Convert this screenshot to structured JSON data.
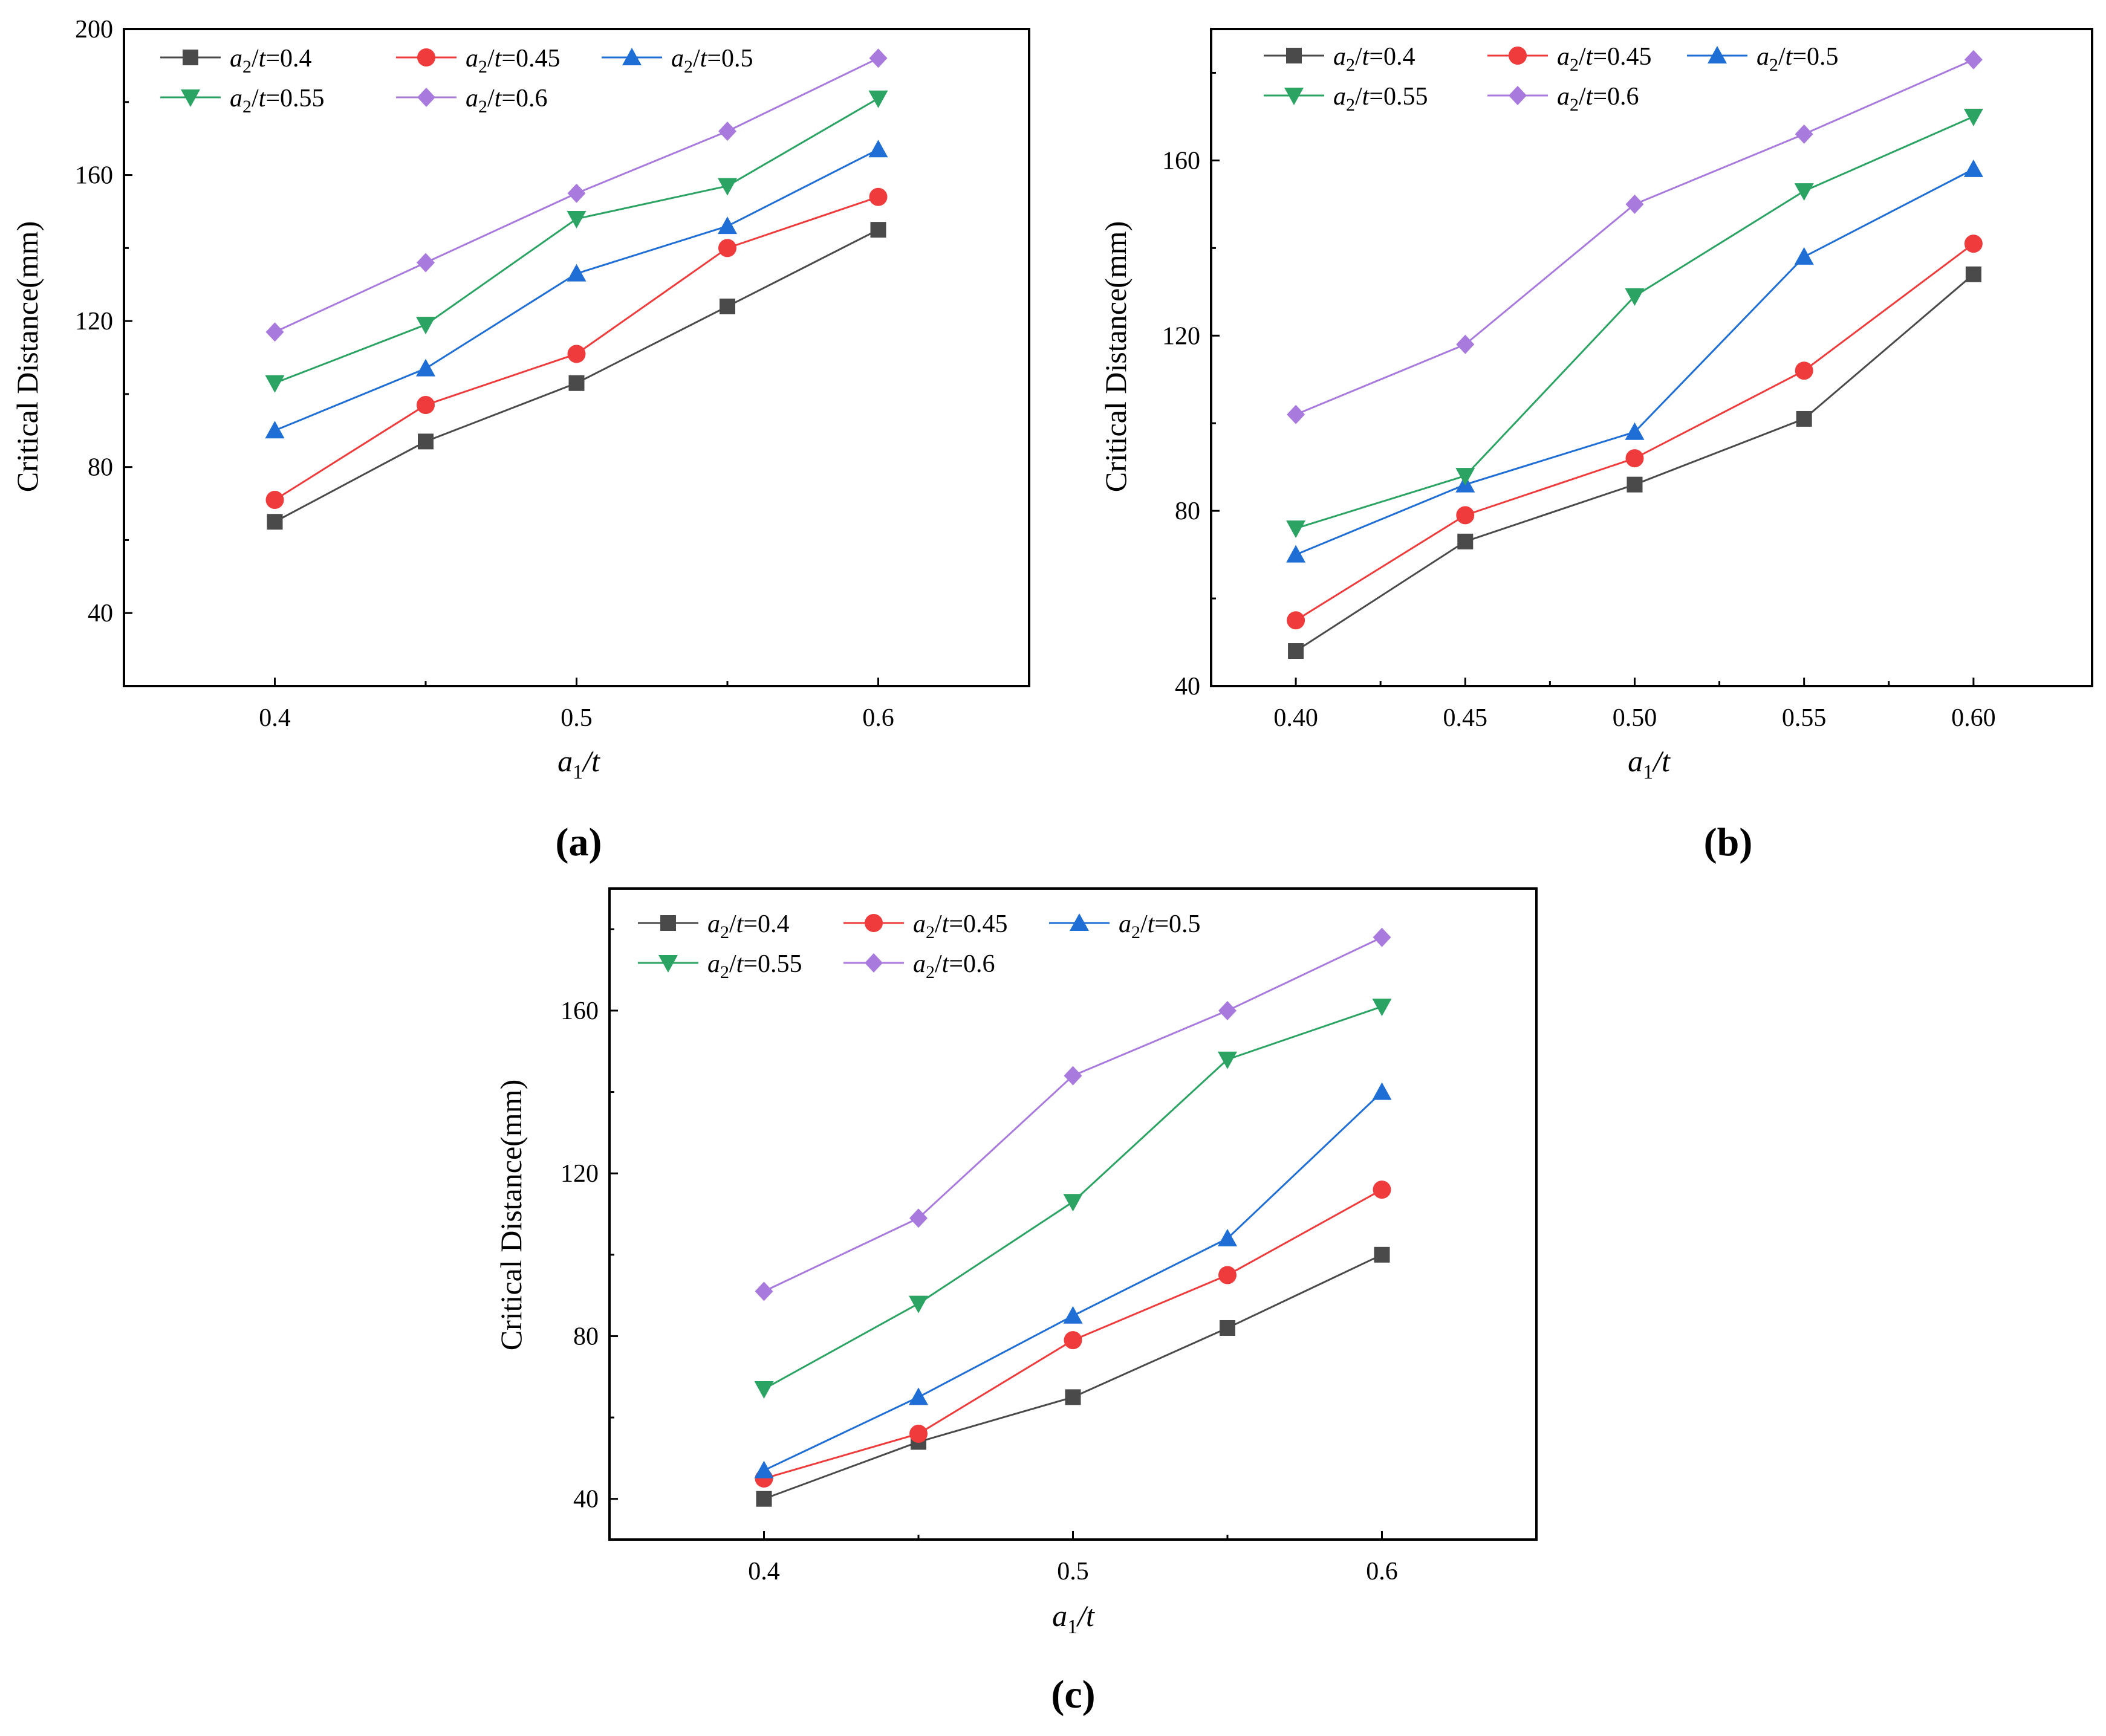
{
  "figure": {
    "panel_labels": [
      "(a)",
      "(b)",
      "(c)"
    ],
    "legend_labels": [
      "a2/t=0.4",
      "a2/t=0.45",
      "a2/t=0.5",
      "a2/t=0.55",
      "a2/t=0.6"
    ],
    "series_colors": [
      "#4a4a4a",
      "#ef3b3b",
      "#1e6ed6",
      "#2aa363",
      "#a87ade"
    ],
    "series_markers": [
      "square",
      "circle",
      "triangle-up",
      "triangle-down",
      "diamond"
    ]
  },
  "chart_data": [
    {
      "type": "line",
      "panel": "(a)",
      "xlabel": "a1/t",
      "ylabel": "Critical Distance(mm)",
      "x": [
        0.4,
        0.45,
        0.5,
        0.55,
        0.6
      ],
      "xticks": [
        "0.4",
        "0.5",
        "0.6"
      ],
      "xtick_values": [
        0.4,
        0.5,
        0.6
      ],
      "xlim": [
        0.35,
        0.65
      ],
      "ylim": [
        20,
        200
      ],
      "yticks": [
        40,
        80,
        120,
        160,
        200
      ],
      "series": [
        {
          "name": "a2/t=0.4",
          "values": [
            65,
            87,
            103,
            124,
            145
          ]
        },
        {
          "name": "a2/t=0.45",
          "values": [
            71,
            97,
            111,
            140,
            154
          ]
        },
        {
          "name": "a2/t=0.5",
          "values": [
            90,
            107,
            133,
            146,
            167
          ]
        },
        {
          "name": "a2/t=0.55",
          "values": [
            103,
            119,
            148,
            157,
            181
          ]
        },
        {
          "name": "a2/t=0.6",
          "values": [
            117,
            136,
            155,
            172,
            192
          ]
        }
      ]
    },
    {
      "type": "line",
      "panel": "(b)",
      "xlabel": "a1/t",
      "ylabel": "Critical Distance(mm)",
      "x": [
        0.4,
        0.45,
        0.5,
        0.55,
        0.6
      ],
      "xticks": [
        "0.40",
        "0.45",
        "0.50",
        "0.55",
        "0.60"
      ],
      "xtick_values": [
        0.4,
        0.45,
        0.5,
        0.55,
        0.6
      ],
      "xlim": [
        0.375,
        0.635
      ],
      "ylim": [
        40,
        190
      ],
      "yticks": [
        40,
        80,
        120,
        160
      ],
      "series": [
        {
          "name": "a2/t=0.4",
          "values": [
            48,
            73,
            86,
            101,
            134
          ]
        },
        {
          "name": "a2/t=0.45",
          "values": [
            55,
            79,
            92,
            112,
            141
          ]
        },
        {
          "name": "a2/t=0.5",
          "values": [
            70,
            86,
            98,
            138,
            158
          ]
        },
        {
          "name": "a2/t=0.55",
          "values": [
            76,
            88,
            129,
            153,
            170
          ]
        },
        {
          "name": "a2/t=0.6",
          "values": [
            102,
            118,
            150,
            166,
            183
          ]
        }
      ]
    },
    {
      "type": "line",
      "panel": "(c)",
      "xlabel": "a1/t",
      "ylabel": "Critical Distance(mm)",
      "x": [
        0.4,
        0.45,
        0.5,
        0.55,
        0.6
      ],
      "xticks": [
        "0.4",
        "0.5",
        "0.6"
      ],
      "xtick_values": [
        0.4,
        0.5,
        0.6
      ],
      "xlim": [
        0.35,
        0.65
      ],
      "ylim": [
        30,
        190
      ],
      "yticks": [
        40,
        80,
        120,
        160
      ],
      "series": [
        {
          "name": "a2/t=0.4",
          "values": [
            40,
            54,
            65,
            82,
            100
          ]
        },
        {
          "name": "a2/t=0.45",
          "values": [
            45,
            56,
            79,
            95,
            116
          ]
        },
        {
          "name": "a2/t=0.5",
          "values": [
            47,
            65,
            85,
            104,
            140
          ]
        },
        {
          "name": "a2/t=0.55",
          "values": [
            67,
            88,
            113,
            148,
            161
          ]
        },
        {
          "name": "a2/t=0.6",
          "values": [
            91,
            109,
            144,
            160,
            178
          ]
        }
      ]
    }
  ]
}
